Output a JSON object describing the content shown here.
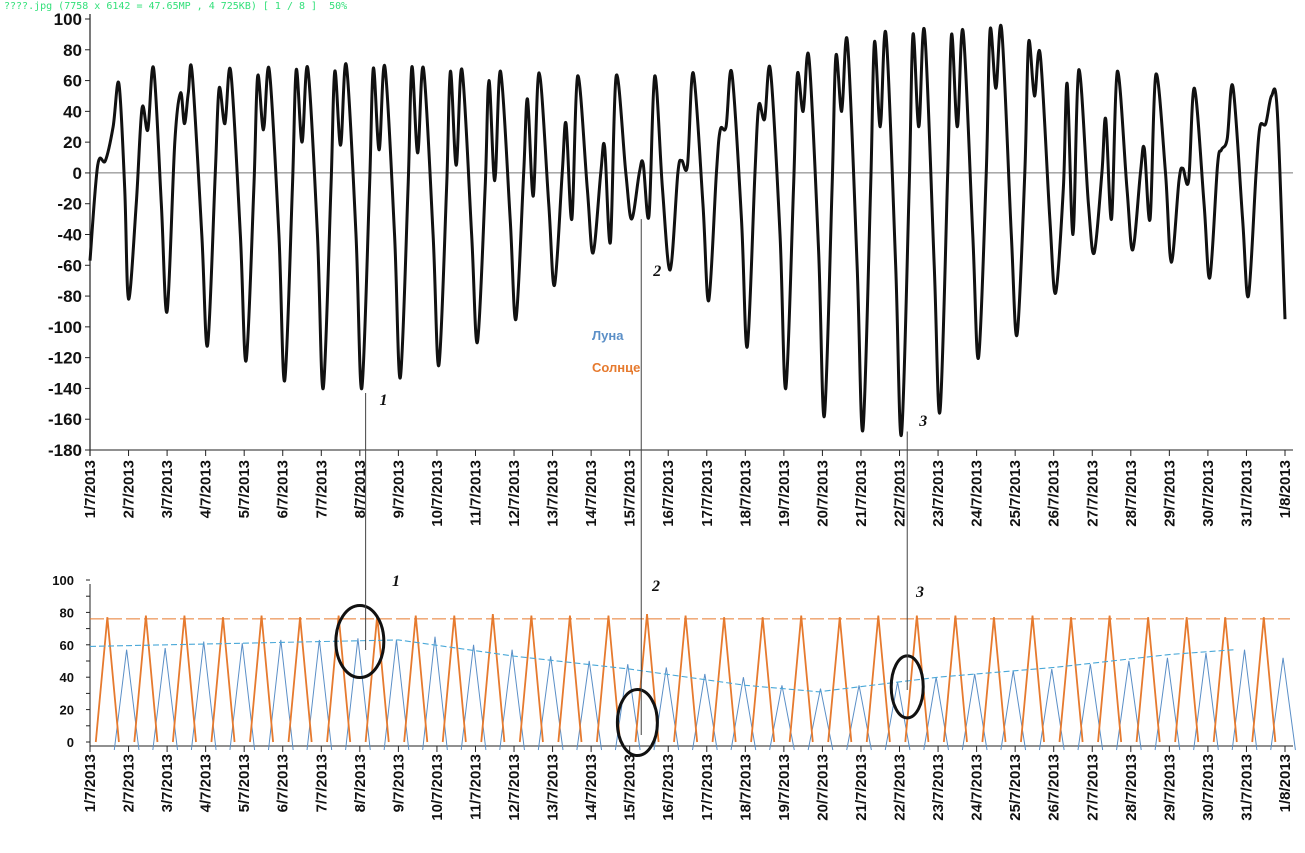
{
  "viewer": {
    "info": "????.jpg (7758 x 6142 = 47.65MP , 4 725KB) [ 1 / 8 ]  50%"
  },
  "colors": {
    "main_line": "#111111",
    "moon": "#5b8fc7",
    "sun": "#e67a2e",
    "trend": "#4aa8d8",
    "axis": "#222222",
    "viewer_text": "#33e07a"
  },
  "chart_data": [
    {
      "type": "line",
      "title": "",
      "xlabel": "",
      "ylabel": "",
      "ylim": [
        -180,
        100
      ],
      "yticks": [
        "100",
        "80",
        "60",
        "40",
        "20",
        "0",
        "-20",
        "-40",
        "-60",
        "-80",
        "-100",
        "-120",
        "-140",
        "-160",
        "-180"
      ],
      "x_labels": [
        "1/7/2013",
        "2/7/2013",
        "3/7/2013",
        "4/7/2013",
        "5/7/2013",
        "6/7/2013",
        "7/7/2013",
        "8/7/2013",
        "9/7/2013",
        "10/7/2013",
        "11/7/2013",
        "12/7/2013",
        "13/7/2013",
        "14/7/2013",
        "15/7/2013",
        "16/7/2013",
        "17/7/2013",
        "18/7/2013",
        "19/7/2013",
        "20/7/2013",
        "21/7/2013",
        "22/7/2013",
        "23/7/2013",
        "24/7/2013",
        "25/7/2013",
        "26/7/2013",
        "27/7/2013",
        "28/7/2013",
        "29/7/2013",
        "30/7/2013",
        "31/7/2013",
        "1/8/2013"
      ],
      "legend": [
        {
          "label": "Луна",
          "color": "#5b8fc7"
        },
        {
          "label": "Солнце",
          "color": "#e67a2e"
        }
      ],
      "annotations": [
        {
          "label": "1",
          "day": 7.2
        },
        {
          "label": "2",
          "day": 14.3
        },
        {
          "label": "3",
          "day": 21.2
        }
      ],
      "series": [
        {
          "values": [
            [
              0.0,
              -57
            ],
            [
              0.2,
              5
            ],
            [
              0.4,
              8
            ],
            [
              0.6,
              30
            ],
            [
              0.75,
              58
            ],
            [
              0.9,
              -10
            ],
            [
              1.0,
              -82
            ],
            [
              1.2,
              -20
            ],
            [
              1.35,
              42
            ],
            [
              1.5,
              28
            ],
            [
              1.65,
              68
            ],
            [
              1.85,
              -20
            ],
            [
              2.0,
              -90
            ],
            [
              2.2,
              20
            ],
            [
              2.35,
              52
            ],
            [
              2.45,
              32
            ],
            [
              2.55,
              52
            ],
            [
              2.65,
              65
            ],
            [
              2.9,
              -40
            ],
            [
              3.05,
              -112
            ],
            [
              3.25,
              0
            ],
            [
              3.35,
              55
            ],
            [
              3.5,
              32
            ],
            [
              3.65,
              66
            ],
            [
              3.9,
              -40
            ],
            [
              4.05,
              -122
            ],
            [
              4.25,
              -10
            ],
            [
              4.35,
              63
            ],
            [
              4.5,
              28
            ],
            [
              4.65,
              67
            ],
            [
              4.9,
              -40
            ],
            [
              5.05,
              -135
            ],
            [
              5.25,
              -10
            ],
            [
              5.35,
              67
            ],
            [
              5.5,
              20
            ],
            [
              5.65,
              68
            ],
            [
              5.9,
              -40
            ],
            [
              6.05,
              -140
            ],
            [
              6.25,
              -10
            ],
            [
              6.35,
              66
            ],
            [
              6.5,
              18
            ],
            [
              6.65,
              70
            ],
            [
              6.9,
              -40
            ],
            [
              7.05,
              -140
            ],
            [
              7.25,
              -10
            ],
            [
              7.35,
              68
            ],
            [
              7.5,
              15
            ],
            [
              7.65,
              69
            ],
            [
              7.9,
              -40
            ],
            [
              8.05,
              -133
            ],
            [
              8.25,
              -10
            ],
            [
              8.35,
              69
            ],
            [
              8.5,
              13
            ],
            [
              8.65,
              68
            ],
            [
              8.9,
              -40
            ],
            [
              9.05,
              -125
            ],
            [
              9.25,
              -10
            ],
            [
              9.35,
              66
            ],
            [
              9.5,
              5
            ],
            [
              9.65,
              67
            ],
            [
              9.9,
              -40
            ],
            [
              10.05,
              -110
            ],
            [
              10.25,
              -10
            ],
            [
              10.35,
              60
            ],
            [
              10.5,
              -5
            ],
            [
              10.65,
              66
            ],
            [
              10.9,
              -30
            ],
            [
              11.05,
              -95
            ],
            [
              11.25,
              0
            ],
            [
              11.35,
              48
            ],
            [
              11.5,
              -15
            ],
            [
              11.65,
              65
            ],
            [
              11.9,
              -20
            ],
            [
              12.05,
              -73
            ],
            [
              12.25,
              0
            ],
            [
              12.35,
              32
            ],
            [
              12.5,
              -30
            ],
            [
              12.65,
              63
            ],
            [
              12.9,
              -10
            ],
            [
              13.05,
              -52
            ],
            [
              13.25,
              0
            ],
            [
              13.35,
              17
            ],
            [
              13.5,
              -45
            ],
            [
              13.65,
              63
            ],
            [
              13.9,
              0
            ],
            [
              14.05,
              -30
            ],
            [
              14.25,
              0
            ],
            [
              14.35,
              6
            ],
            [
              14.5,
              -28
            ],
            [
              14.65,
              63
            ],
            [
              14.85,
              -10
            ],
            [
              15.05,
              -63
            ],
            [
              15.25,
              0
            ],
            [
              15.35,
              8
            ],
            [
              15.5,
              5
            ],
            [
              15.65,
              65
            ],
            [
              15.9,
              -20
            ],
            [
              16.05,
              -83
            ],
            [
              16.25,
              0
            ],
            [
              16.35,
              28
            ],
            [
              16.5,
              30
            ],
            [
              16.65,
              65
            ],
            [
              16.9,
              -30
            ],
            [
              17.05,
              -113
            ],
            [
              17.25,
              0
            ],
            [
              17.35,
              44
            ],
            [
              17.5,
              35
            ],
            [
              17.65,
              67
            ],
            [
              17.9,
              -40
            ],
            [
              18.05,
              -140
            ],
            [
              18.25,
              -10
            ],
            [
              18.35,
              64
            ],
            [
              18.5,
              40
            ],
            [
              18.65,
              75
            ],
            [
              18.9,
              -50
            ],
            [
              19.05,
              -158
            ],
            [
              19.25,
              -10
            ],
            [
              19.35,
              76
            ],
            [
              19.5,
              40
            ],
            [
              19.65,
              85
            ],
            [
              19.9,
              -60
            ],
            [
              20.05,
              -167
            ],
            [
              20.25,
              -10
            ],
            [
              20.35,
              85
            ],
            [
              20.5,
              30
            ],
            [
              20.65,
              90
            ],
            [
              20.9,
              -60
            ],
            [
              21.05,
              -170
            ],
            [
              21.25,
              -10
            ],
            [
              21.35,
              90
            ],
            [
              21.5,
              30
            ],
            [
              21.65,
              92
            ],
            [
              21.9,
              -60
            ],
            [
              22.05,
              -155
            ],
            [
              22.25,
              0
            ],
            [
              22.35,
              90
            ],
            [
              22.5,
              30
            ],
            [
              22.65,
              92
            ],
            [
              22.9,
              -40
            ],
            [
              23.05,
              -120
            ],
            [
              23.25,
              0
            ],
            [
              23.35,
              93
            ],
            [
              23.5,
              55
            ],
            [
              23.65,
              93
            ],
            [
              23.9,
              -40
            ],
            [
              24.05,
              -105
            ],
            [
              24.25,
              0
            ],
            [
              24.35,
              85
            ],
            [
              24.5,
              50
            ],
            [
              24.65,
              77
            ],
            [
              24.9,
              -30
            ],
            [
              25.05,
              -78
            ],
            [
              25.25,
              -10
            ],
            [
              25.35,
              58
            ],
            [
              25.5,
              -40
            ],
            [
              25.65,
              67
            ],
            [
              25.9,
              -20
            ],
            [
              26.05,
              -52
            ],
            [
              26.25,
              0
            ],
            [
              26.35,
              35
            ],
            [
              26.5,
              -30
            ],
            [
              26.65,
              66
            ],
            [
              26.9,
              -10
            ],
            [
              27.05,
              -50
            ],
            [
              27.25,
              0
            ],
            [
              27.35,
              16
            ],
            [
              27.5,
              -30
            ],
            [
              27.65,
              64
            ],
            [
              27.9,
              0
            ],
            [
              28.05,
              -58
            ],
            [
              28.25,
              -5
            ],
            [
              28.35,
              3
            ],
            [
              28.5,
              -5
            ],
            [
              28.65,
              55
            ],
            [
              28.9,
              -20
            ],
            [
              29.05,
              -68
            ],
            [
              29.25,
              5
            ],
            [
              29.35,
              15
            ],
            [
              29.5,
              22
            ],
            [
              29.65,
              56
            ],
            [
              29.9,
              -30
            ],
            [
              30.05,
              -80
            ],
            [
              30.25,
              0
            ],
            [
              30.35,
              30
            ],
            [
              30.5,
              32
            ],
            [
              30.65,
              50
            ],
            [
              30.8,
              40
            ],
            [
              31.0,
              -95
            ]
          ]
        }
      ]
    },
    {
      "type": "line",
      "title": "",
      "xlabel": "",
      "ylabel": "",
      "ylim": [
        0,
        100
      ],
      "yticks": [
        "100",
        "80",
        "60",
        "40",
        "20",
        "0"
      ],
      "x_labels": [
        "1/7/2013",
        "2/7/2013",
        "3/7/2013",
        "4/7/2013",
        "5/7/2013",
        "6/7/2013",
        "7/7/2013",
        "8/7/2013",
        "9/7/2013",
        "10/7/2013",
        "11/7/2013",
        "12/7/2013",
        "13/7/2013",
        "14/7/2013",
        "15/7/2013",
        "16/7/2013",
        "17/7/2013",
        "18/7/2013",
        "19/7/2013",
        "20/7/2013",
        "21/7/2013",
        "22/7/2013",
        "23/7/2013",
        "24/7/2013",
        "25/7/2013",
        "26/7/2013",
        "27/7/2013",
        "28/7/2013",
        "29/7/2013",
        "30/7/2013",
        "31/7/2013",
        "1/8/2013"
      ],
      "annotations": [
        {
          "label": "1",
          "day": 7.2
        },
        {
          "label": "2",
          "day": 14.3
        },
        {
          "label": "3",
          "day": 21.2
        }
      ],
      "series": [
        {
          "name": "Луна",
          "color": "#5b8fc7",
          "peak_offset_days": 0.95,
          "peaks": [
            57,
            58,
            62,
            61,
            63,
            63,
            64,
            63,
            65,
            60,
            57,
            53,
            50,
            48,
            46,
            42,
            40,
            35,
            33,
            35,
            37,
            40,
            42,
            44,
            45,
            48,
            50,
            52,
            55,
            57,
            52
          ]
        },
        {
          "name": "Солнце",
          "color": "#e67a2e",
          "peak_offset_days": 0.45,
          "peaks": [
            77,
            78,
            78,
            77,
            78,
            77,
            78,
            78,
            78,
            78,
            79,
            78,
            78,
            78,
            79,
            78,
            77,
            77,
            78,
            77,
            78,
            78,
            78,
            77,
            78,
            77,
            78,
            77,
            77,
            77,
            77,
            77
          ]
        },
        {
          "name": "trend",
          "color": "#4aa8d8",
          "values": [
            [
              0,
              59
            ],
            [
              2,
              60
            ],
            [
              4,
              61
            ],
            [
              6,
              62
            ],
            [
              8,
              63
            ],
            [
              11,
              53
            ],
            [
              14,
              45
            ],
            [
              17,
              35
            ],
            [
              18.9,
              31
            ],
            [
              22,
              40
            ],
            [
              25,
              46
            ],
            [
              28,
              54
            ],
            [
              29.7,
              57
            ]
          ]
        },
        {
          "name": "sun-level",
          "color": "#e67a2e",
          "values": [
            [
              0,
              76
            ],
            [
              31,
              76
            ]
          ]
        }
      ]
    }
  ]
}
